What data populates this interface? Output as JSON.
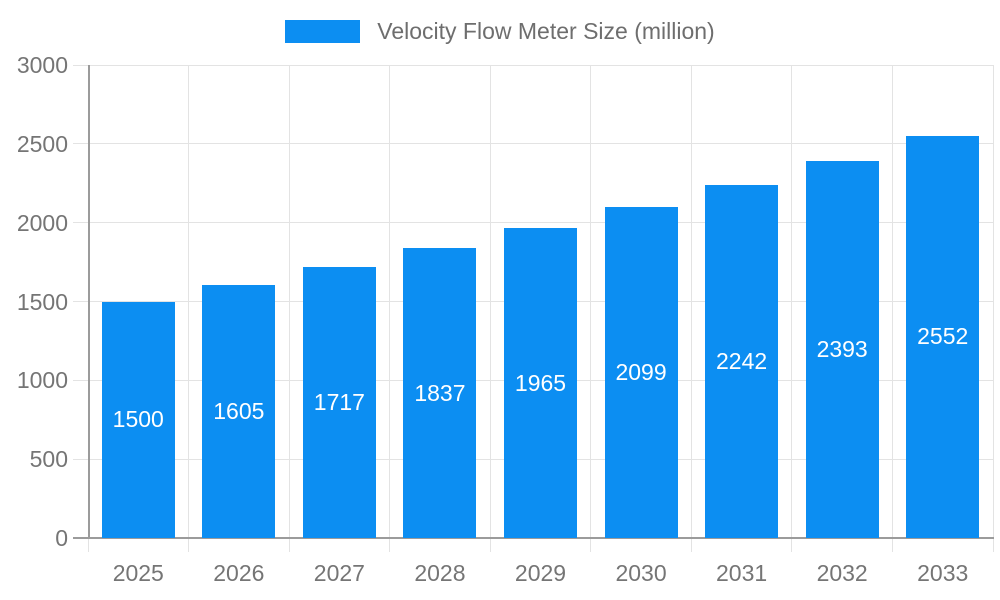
{
  "legend": {
    "label": "Velocity Flow Meter Size (million)"
  },
  "colors": {
    "bar": "#0C8EF2",
    "axis_line": "#9B9B9B",
    "grid_line": "#E3E3E3",
    "tick_label": "#757575",
    "legend_label": "#6E6E6E",
    "value_label": "#FFFFFF",
    "background": "#FFFFFF"
  },
  "chart_data": {
    "type": "bar",
    "title": "Velocity Flow Meter Size (million)",
    "categories": [
      "2025",
      "2026",
      "2027",
      "2028",
      "2029",
      "2030",
      "2031",
      "2032",
      "2033"
    ],
    "series": [
      {
        "name": "Velocity Flow Meter Size (million)",
        "values": [
          1500,
          1605,
          1717,
          1837,
          1965,
          2099,
          2242,
          2393,
          2552
        ]
      }
    ],
    "xlabel": "",
    "ylabel": "",
    "ylim": [
      0,
      3000
    ],
    "y_ticks": [
      0,
      500,
      1000,
      1500,
      2000,
      2500,
      3000
    ],
    "grid": true,
    "legend_position": "top",
    "value_labels": "inside-center"
  }
}
